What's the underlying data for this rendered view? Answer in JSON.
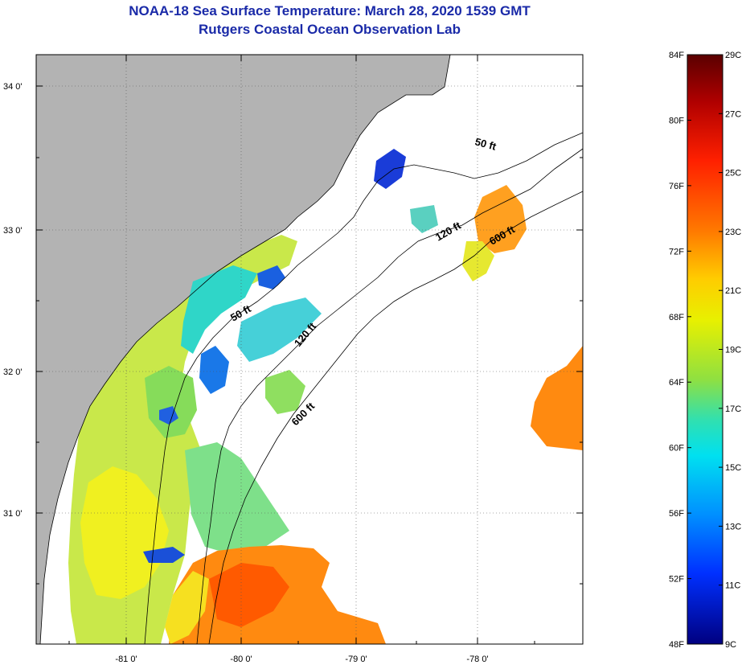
{
  "title": "NOAA-18 Sea Surface Temperature:  March 28, 2020 1539 GMT",
  "subtitle": "Rutgers Coastal Ocean Observation Lab",
  "lat_labels": [
    "34 0'",
    "33 0'",
    "32 0'",
    "31 0'"
  ],
  "lon_labels": [
    "-81 0'",
    "-80 0'",
    "-79 0'",
    "-78 0'"
  ],
  "isobaths": {
    "a": "50 ft",
    "b": "120 ft",
    "c": "600 ft",
    "d": "50 ft",
    "e": "120 ft",
    "f": "600 ft"
  },
  "colorbar": {
    "f_labels": [
      "84F",
      "80F",
      "76F",
      "72F",
      "68F",
      "64F",
      "60F",
      "56F",
      "52F",
      "48F"
    ],
    "c_labels": [
      "29C",
      "27C",
      "25C",
      "23C",
      "21C",
      "19C",
      "17C",
      "15C",
      "13C",
      "11C",
      "9C"
    ],
    "colors": [
      "#5a0000",
      "#c00000",
      "#ff3000",
      "#ff8c00",
      "#ffd200",
      "#d8f000",
      "#70e060",
      "#00e0e0",
      "#0090ff",
      "#0028ff",
      "#000088"
    ]
  },
  "colors": {
    "land": "#b3b3b3",
    "title": "#1a2aa8"
  }
}
